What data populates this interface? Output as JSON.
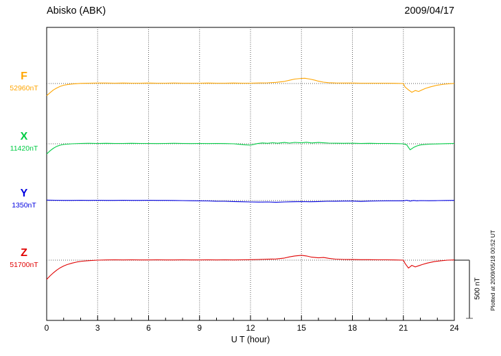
{
  "header": {
    "station": "Abisko (ABK)",
    "date": "2009/04/17"
  },
  "chart_data": {
    "type": "line",
    "title": "Abisko (ABK)",
    "date_label": "2009/04/17",
    "xlabel": "U T (hour)",
    "xlim": [
      0,
      24
    ],
    "x_ticks": [
      0,
      3,
      6,
      9,
      12,
      15,
      18,
      21,
      24
    ],
    "grid": "dotted vertical lines every 3 hours; dotted horizontal baseline per channel",
    "scale_bar": {
      "label": "500 nT",
      "nT": 500
    },
    "plotted_at": "Plotted at 2009/05/18 00:52 UT",
    "y_scale_note": "series point values are nT offsets from each channel baseline",
    "series": [
      {
        "name": "F",
        "baseline": "52960nT",
        "color": "#FFA500",
        "points": [
          [
            0,
            -105
          ],
          [
            0.2,
            -78
          ],
          [
            0.4,
            -55
          ],
          [
            0.6,
            -38
          ],
          [
            0.8,
            -24
          ],
          [
            1,
            -15
          ],
          [
            1.25,
            -8
          ],
          [
            1.5,
            -4
          ],
          [
            2,
            1
          ],
          [
            2.5,
            3
          ],
          [
            3,
            4
          ],
          [
            3.5,
            4
          ],
          [
            4,
            3
          ],
          [
            4.5,
            4
          ],
          [
            5,
            3
          ],
          [
            5.5,
            3
          ],
          [
            6,
            4
          ],
          [
            6.5,
            3
          ],
          [
            7,
            3
          ],
          [
            7.5,
            4
          ],
          [
            8,
            3
          ],
          [
            8.5,
            3
          ],
          [
            9,
            3
          ],
          [
            9.5,
            4
          ],
          [
            10,
            3
          ],
          [
            10.5,
            3
          ],
          [
            11,
            4
          ],
          [
            11.5,
            3
          ],
          [
            12,
            3
          ],
          [
            12.5,
            5
          ],
          [
            13,
            6
          ],
          [
            13.5,
            10
          ],
          [
            14,
            18
          ],
          [
            14.3,
            28
          ],
          [
            14.6,
            38
          ],
          [
            15,
            44
          ],
          [
            15.2,
            45
          ],
          [
            15.5,
            38
          ],
          [
            15.8,
            28
          ],
          [
            16,
            20
          ],
          [
            16.3,
            12
          ],
          [
            16.6,
            7
          ],
          [
            17,
            5
          ],
          [
            17.5,
            4
          ],
          [
            18,
            4
          ],
          [
            18.5,
            3
          ],
          [
            19,
            3
          ],
          [
            19.5,
            3
          ],
          [
            20,
            3
          ],
          [
            20.5,
            2
          ],
          [
            21,
            0
          ],
          [
            21.1,
            -30
          ],
          [
            21.3,
            -55
          ],
          [
            21.5,
            -75
          ],
          [
            21.7,
            -60
          ],
          [
            21.9,
            -68
          ],
          [
            22.1,
            -55
          ],
          [
            22.3,
            -42
          ],
          [
            22.6,
            -28
          ],
          [
            23,
            -14
          ],
          [
            23.4,
            -6
          ],
          [
            23.7,
            -2
          ],
          [
            24,
            1
          ]
        ]
      },
      {
        "name": "X",
        "baseline": "11420nT",
        "color": "#00CC44",
        "points": [
          [
            0,
            -88
          ],
          [
            0.2,
            -60
          ],
          [
            0.4,
            -38
          ],
          [
            0.6,
            -22
          ],
          [
            0.8,
            -12
          ],
          [
            1,
            -6
          ],
          [
            1.5,
            0
          ],
          [
            2,
            3
          ],
          [
            2.5,
            4
          ],
          [
            3,
            3
          ],
          [
            3.5,
            4
          ],
          [
            4,
            3
          ],
          [
            4.5,
            3
          ],
          [
            5,
            4
          ],
          [
            5.5,
            3
          ],
          [
            6,
            3
          ],
          [
            6.5,
            2
          ],
          [
            7,
            3
          ],
          [
            7.5,
            4
          ],
          [
            8,
            3
          ],
          [
            8.5,
            2
          ],
          [
            9,
            3
          ],
          [
            9.5,
            2
          ],
          [
            10,
            3
          ],
          [
            10.5,
            2
          ],
          [
            11,
            0
          ],
          [
            11.3,
            -4
          ],
          [
            11.6,
            -8
          ],
          [
            12,
            -12
          ],
          [
            12.2,
            -6
          ],
          [
            12.4,
            2
          ],
          [
            12.7,
            7
          ],
          [
            13,
            4
          ],
          [
            13.3,
            9
          ],
          [
            13.6,
            5
          ],
          [
            14,
            11
          ],
          [
            14.3,
            6
          ],
          [
            14.6,
            12
          ],
          [
            15,
            8
          ],
          [
            15.3,
            13
          ],
          [
            15.6,
            7
          ],
          [
            16,
            11
          ],
          [
            16.3,
            8
          ],
          [
            16.6,
            6
          ],
          [
            17,
            5
          ],
          [
            17.5,
            4
          ],
          [
            18,
            5
          ],
          [
            18.5,
            3
          ],
          [
            19,
            4
          ],
          [
            19.5,
            3
          ],
          [
            20,
            3
          ],
          [
            20.5,
            2
          ],
          [
            21,
            0
          ],
          [
            21.2,
            -10
          ],
          [
            21.4,
            -52
          ],
          [
            21.6,
            -32
          ],
          [
            21.8,
            -18
          ],
          [
            22,
            -10
          ],
          [
            22.3,
            -6
          ],
          [
            22.6,
            -3
          ],
          [
            23,
            -1
          ],
          [
            23.5,
            1
          ],
          [
            24,
            3
          ]
        ]
      },
      {
        "name": "Y",
        "baseline": "1350nT",
        "color": "#0000E0",
        "points": [
          [
            0,
            4
          ],
          [
            0.5,
            3
          ],
          [
            1,
            2
          ],
          [
            1.5,
            2
          ],
          [
            2,
            3
          ],
          [
            2.5,
            2
          ],
          [
            3,
            3
          ],
          [
            3.5,
            2
          ],
          [
            4,
            2
          ],
          [
            4.5,
            3
          ],
          [
            5,
            2
          ],
          [
            5.5,
            2
          ],
          [
            6,
            3
          ],
          [
            6.5,
            2
          ],
          [
            7,
            2
          ],
          [
            7.5,
            1
          ],
          [
            8,
            0
          ],
          [
            8.5,
            -1
          ],
          [
            9,
            -2
          ],
          [
            9.5,
            -3
          ],
          [
            10,
            -5
          ],
          [
            10.5,
            -6
          ],
          [
            11,
            -8
          ],
          [
            11.5,
            -10
          ],
          [
            12,
            -12
          ],
          [
            12.5,
            -13
          ],
          [
            13,
            -12
          ],
          [
            13.5,
            -14
          ],
          [
            14,
            -12
          ],
          [
            14.5,
            -10
          ],
          [
            15,
            -9
          ],
          [
            15.5,
            -10
          ],
          [
            16,
            -8
          ],
          [
            16.5,
            -6
          ],
          [
            17,
            -5
          ],
          [
            17.5,
            -4
          ],
          [
            18,
            -4
          ],
          [
            18.5,
            -7
          ],
          [
            19,
            -4
          ],
          [
            19.5,
            -3
          ],
          [
            20,
            -2
          ],
          [
            20.5,
            -2
          ],
          [
            21,
            -2
          ],
          [
            21.2,
            3
          ],
          [
            21.4,
            -4
          ],
          [
            21.6,
            1
          ],
          [
            21.8,
            -2
          ],
          [
            22,
            0
          ],
          [
            22.5,
            -1
          ],
          [
            23,
            0
          ],
          [
            23.5,
            1
          ],
          [
            24,
            2
          ]
        ]
      },
      {
        "name": "Z",
        "baseline": "51700nT",
        "color": "#E00000",
        "points": [
          [
            0,
            -165
          ],
          [
            0.2,
            -135
          ],
          [
            0.4,
            -108
          ],
          [
            0.6,
            -85
          ],
          [
            0.8,
            -65
          ],
          [
            1,
            -50
          ],
          [
            1.2,
            -38
          ],
          [
            1.5,
            -25
          ],
          [
            1.8,
            -15
          ],
          [
            2.1,
            -9
          ],
          [
            2.5,
            -4
          ],
          [
            3,
            0
          ],
          [
            3.5,
            2
          ],
          [
            4,
            3
          ],
          [
            4.5,
            2
          ],
          [
            5,
            3
          ],
          [
            5.5,
            2
          ],
          [
            6,
            2
          ],
          [
            6.5,
            3
          ],
          [
            7,
            2
          ],
          [
            7.5,
            2
          ],
          [
            8,
            3
          ],
          [
            8.5,
            2
          ],
          [
            9,
            2
          ],
          [
            9.5,
            3
          ],
          [
            10,
            2
          ],
          [
            10.5,
            3
          ],
          [
            11,
            2
          ],
          [
            11.5,
            3
          ],
          [
            12,
            4
          ],
          [
            12.5,
            6
          ],
          [
            13,
            8
          ],
          [
            13.5,
            10
          ],
          [
            14,
            18
          ],
          [
            14.3,
            28
          ],
          [
            14.6,
            36
          ],
          [
            15,
            42
          ],
          [
            15.3,
            36
          ],
          [
            15.6,
            26
          ],
          [
            16,
            20
          ],
          [
            16.3,
            23
          ],
          [
            16.6,
            16
          ],
          [
            17,
            9
          ],
          [
            17.5,
            6
          ],
          [
            18,
            5
          ],
          [
            18.5,
            4
          ],
          [
            19,
            4
          ],
          [
            19.5,
            3
          ],
          [
            20,
            3
          ],
          [
            20.5,
            2
          ],
          [
            21,
            0
          ],
          [
            21.1,
            -28
          ],
          [
            21.3,
            -68
          ],
          [
            21.5,
            -45
          ],
          [
            21.7,
            -58
          ],
          [
            21.9,
            -48
          ],
          [
            22.1,
            -38
          ],
          [
            22.4,
            -25
          ],
          [
            22.8,
            -13
          ],
          [
            23.2,
            -5
          ],
          [
            23.6,
            0
          ],
          [
            24,
            2
          ]
        ]
      }
    ]
  }
}
